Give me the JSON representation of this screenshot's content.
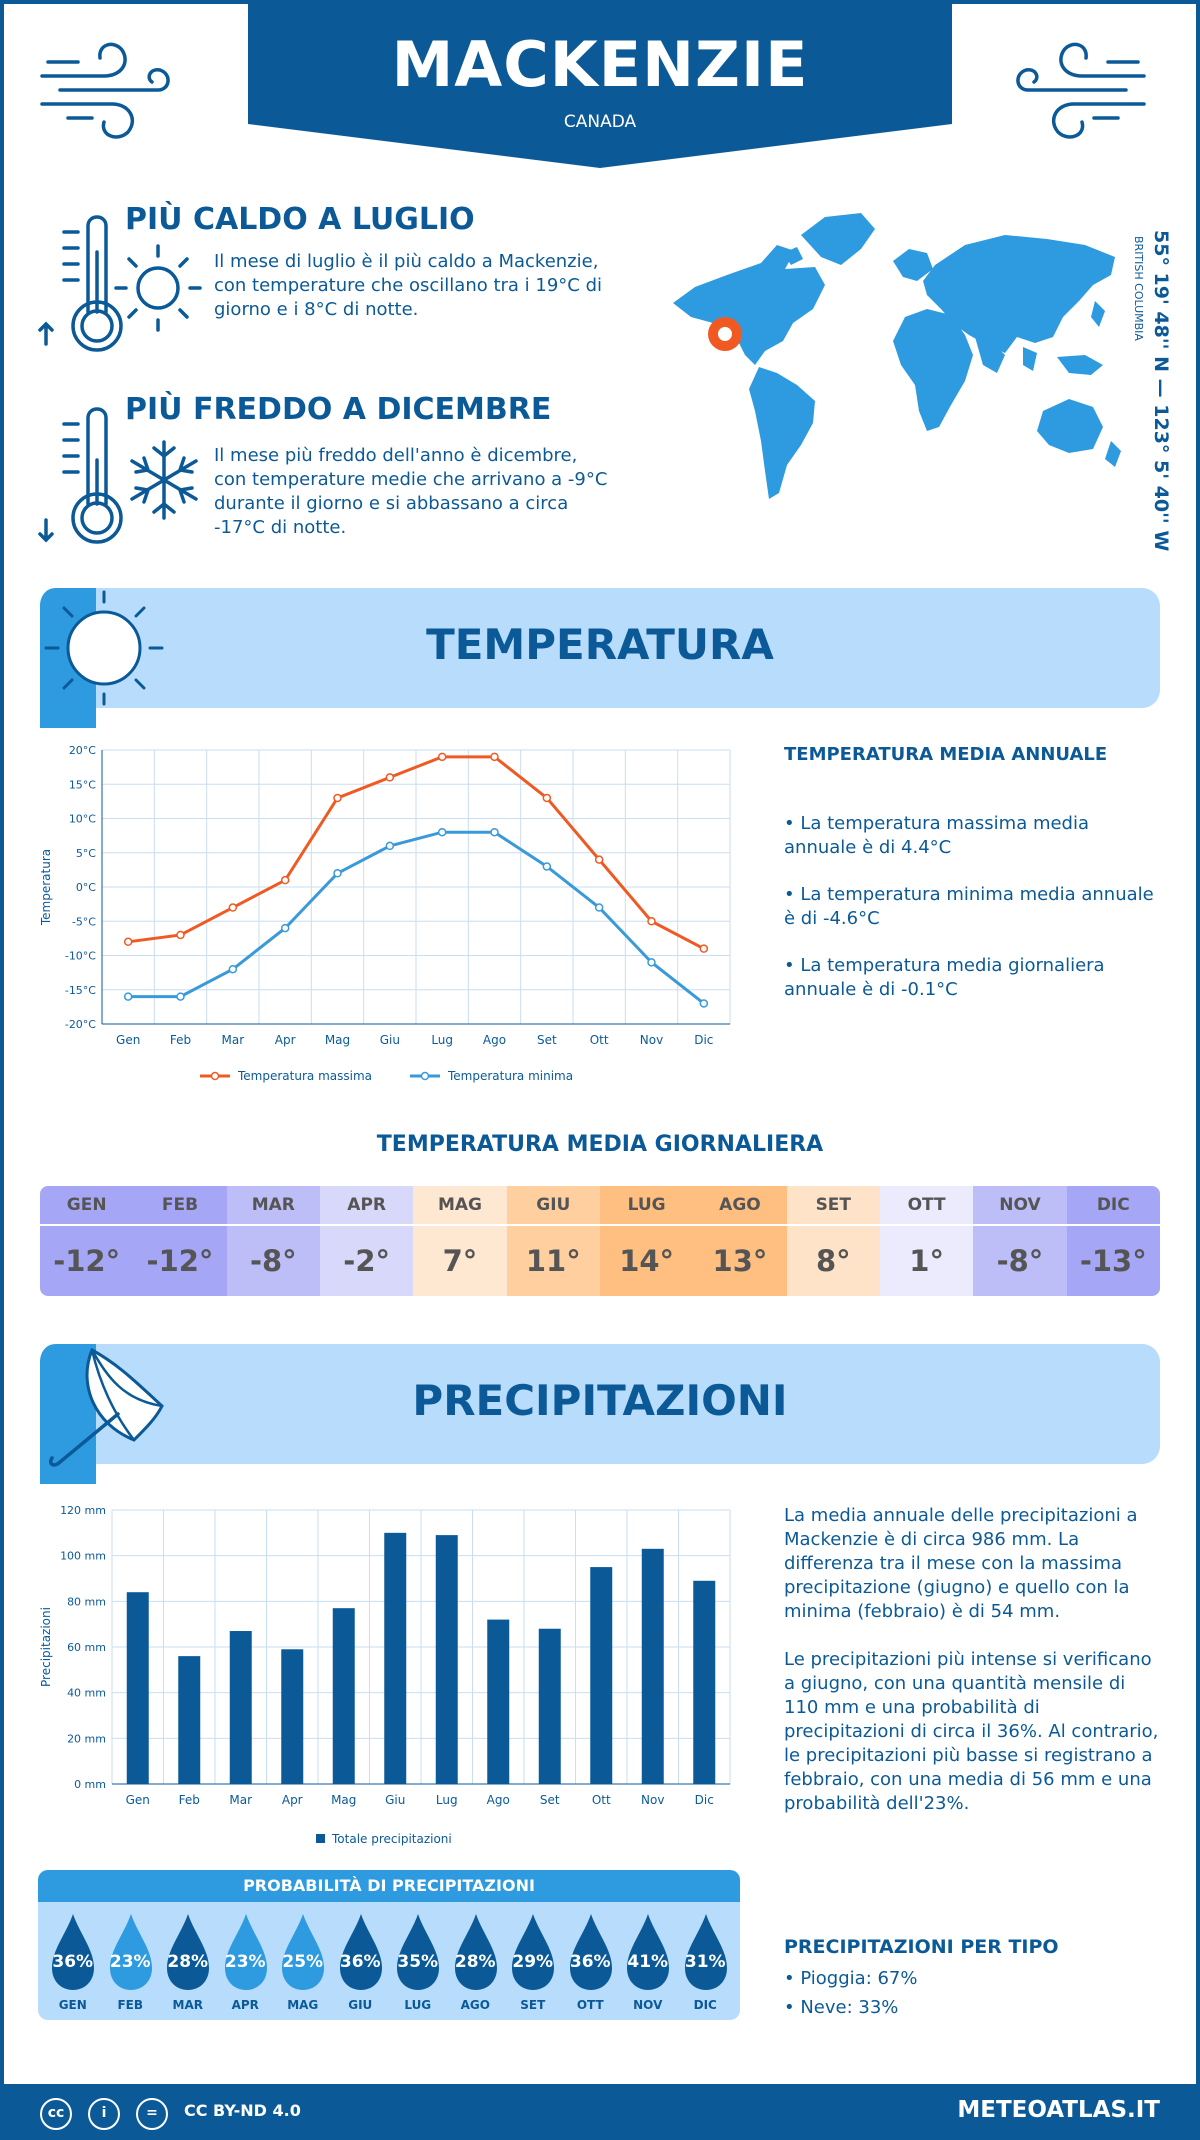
{
  "header": {
    "city": "MACKENZIE",
    "country": "CANADA"
  },
  "hottest": {
    "title": "PIÙ CALDO A LUGLIO",
    "text": "Il mese di luglio è il più caldo a Mackenzie, con temperature che oscillano tra i 19°C di giorno e i 8°C di notte."
  },
  "coldest": {
    "title": "PIÙ FREDDO A DICEMBRE",
    "text": "Il mese più freddo dell'anno è dicembre, con temperature medie che arrivano a -9°C durante il giorno e si abbassano a circa -17°C di notte."
  },
  "location": {
    "coords": "55° 19' 48'' N — 123° 5' 40'' W",
    "region": "BRITISH COLUMBIA"
  },
  "temperature_section": {
    "title": "TEMPERATURA",
    "annual_title": "TEMPERATURA MEDIA ANNUALE",
    "annual_max": "• La temperatura massima media annuale è di 4.4°C",
    "annual_min": "• La temperatura minima media annuale è di -4.6°C",
    "annual_mean": "• La temperatura media giornaliera annuale è di -0.1°C"
  },
  "chart_data": [
    {
      "type": "line",
      "ylabel": "Temperatura",
      "categories": [
        "Gen",
        "Feb",
        "Mar",
        "Apr",
        "Mag",
        "Giu",
        "Lug",
        "Ago",
        "Set",
        "Ott",
        "Nov",
        "Dic"
      ],
      "y_ticks": [
        "20°C",
        "15°C",
        "10°C",
        "5°C",
        "0°C",
        "-5°C",
        "-10°C",
        "-15°C",
        "-20°C"
      ],
      "ylim": [
        -20,
        20
      ],
      "series": [
        {
          "name": "Temperatura massima",
          "color": "#f05a22",
          "values": [
            -8,
            -7,
            -3,
            1,
            13,
            16,
            19,
            19,
            13,
            4,
            -5,
            -9
          ]
        },
        {
          "name": "Temperatura minima",
          "color": "#3a9ad9",
          "values": [
            -16,
            -16,
            -12,
            -6,
            2,
            6,
            8,
            8,
            3,
            -3,
            -11,
            -17
          ]
        }
      ]
    },
    {
      "type": "bar",
      "ylabel": "Precipitazioni",
      "categories": [
        "Gen",
        "Feb",
        "Mar",
        "Apr",
        "Mag",
        "Giu",
        "Lug",
        "Ago",
        "Set",
        "Ott",
        "Nov",
        "Dic"
      ],
      "y_ticks": [
        "120 mm",
        "100 mm",
        "80 mm",
        "60 mm",
        "40 mm",
        "20 mm",
        "0 mm"
      ],
      "ylim": [
        0,
        120
      ],
      "series": [
        {
          "name": "Totale precipitazioni",
          "color": "#0b5a97",
          "values": [
            84,
            56,
            67,
            59,
            77,
            110,
            109,
            72,
            68,
            95,
            103,
            89
          ]
        }
      ]
    }
  ],
  "daily_mean": {
    "title": "TEMPERATURA MEDIA GIORNALIERA",
    "months": [
      {
        "m": "GEN",
        "v": "-12°",
        "head": "#a6a6f7",
        "body": "#a6a6f7"
      },
      {
        "m": "FEB",
        "v": "-12°",
        "head": "#a6a6f7",
        "body": "#a6a6f7"
      },
      {
        "m": "MAR",
        "v": "-8°",
        "head": "#bdbdf8",
        "body": "#bdbdf8"
      },
      {
        "m": "APR",
        "v": "-2°",
        "head": "#d8d8fb",
        "body": "#d8d8fb"
      },
      {
        "m": "MAG",
        "v": "7°",
        "head": "#ffe8d2",
        "body": "#ffe8d2"
      },
      {
        "m": "GIU",
        "v": "11°",
        "head": "#ffcfa0",
        "body": "#ffcfa0"
      },
      {
        "m": "LUG",
        "v": "14°",
        "head": "#ffbf80",
        "body": "#ffbf80"
      },
      {
        "m": "AGO",
        "v": "13°",
        "head": "#ffbf80",
        "body": "#ffbf80"
      },
      {
        "m": "SET",
        "v": "8°",
        "head": "#ffe3c8",
        "body": "#ffe3c8"
      },
      {
        "m": "OTT",
        "v": "1°",
        "head": "#ebebfd",
        "body": "#ebebfd"
      },
      {
        "m": "NOV",
        "v": "-8°",
        "head": "#bdbdf8",
        "body": "#bdbdf8"
      },
      {
        "m": "DIC",
        "v": "-13°",
        "head": "#a6a6f7",
        "body": "#a6a6f7"
      }
    ]
  },
  "precip_section": {
    "title": "PRECIPITAZIONI",
    "para1": "La media annuale delle precipitazioni a Mackenzie è di circa 986 mm. La differenza tra il mese con la massima precipitazione (giugno) e quello con la minima (febbraio) è di 54 mm.",
    "para2": "Le precipitazioni più intense si verificano a giugno, con una quantità mensile di 110 mm e una probabilità di precipitazioni di circa il 36%. Al contrario, le precipitazioni più basse si registrano a febbraio, con una media di 56 mm e una probabilità dell'23%."
  },
  "probability": {
    "title": "PROBABILITÀ DI PRECIPITAZIONI",
    "items": [
      {
        "m": "GEN",
        "v": "36%",
        "color": "#0b5a97"
      },
      {
        "m": "FEB",
        "v": "23%",
        "color": "#2e9ae0"
      },
      {
        "m": "MAR",
        "v": "28%",
        "color": "#0b5a97"
      },
      {
        "m": "APR",
        "v": "23%",
        "color": "#2e9ae0"
      },
      {
        "m": "MAG",
        "v": "25%",
        "color": "#2e9ae0"
      },
      {
        "m": "GIU",
        "v": "36%",
        "color": "#0b5a97"
      },
      {
        "m": "LUG",
        "v": "35%",
        "color": "#0b5a97"
      },
      {
        "m": "AGO",
        "v": "28%",
        "color": "#0b5a97"
      },
      {
        "m": "SET",
        "v": "29%",
        "color": "#0b5a97"
      },
      {
        "m": "OTT",
        "v": "36%",
        "color": "#0b5a97"
      },
      {
        "m": "NOV",
        "v": "41%",
        "color": "#0b5a97"
      },
      {
        "m": "DIC",
        "v": "31%",
        "color": "#0b5a97"
      }
    ]
  },
  "precip_type": {
    "title": "PRECIPITAZIONI PER TIPO",
    "rain": "• Pioggia: 67%",
    "snow": "• Neve: 33%"
  },
  "footer": {
    "license": "CC BY-ND 4.0",
    "site": "METEOATLAS.IT",
    "cc1": "cc",
    "cc2": "i",
    "cc3": "="
  }
}
